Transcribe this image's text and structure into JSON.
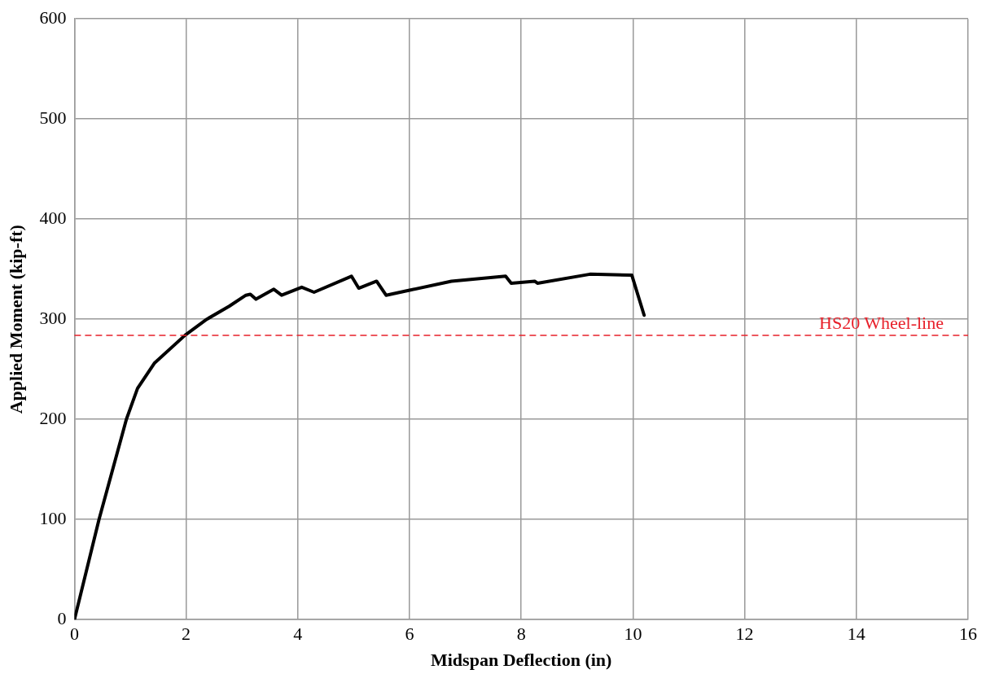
{
  "chart_data": {
    "type": "line",
    "xlabel": "Midspan Deflection (in)",
    "ylabel": "Applied Moment (kip-ft)",
    "series": [
      {
        "color": "#000000",
        "x": [
          0,
          0.44,
          0.93,
          1.13,
          1.43,
          1.98,
          2.37,
          2.77,
          3.07,
          3.15,
          3.25,
          3.57,
          3.71,
          4.07,
          4.29,
          4.96,
          5.09,
          5.41,
          5.58,
          6.0,
          6.75,
          7.72,
          7.82,
          8.24,
          8.29,
          9.23,
          9.98,
          10.2
        ],
        "values": [
          0,
          100,
          200,
          231,
          256,
          284,
          300,
          313,
          324,
          325,
          320,
          330,
          324,
          332,
          327,
          343,
          331,
          338,
          324,
          329,
          338,
          343,
          336,
          338,
          336,
          345,
          344,
          304
        ]
      }
    ],
    "xlim": [
      0,
      16
    ],
    "xticks": [
      0,
      2,
      4,
      6,
      8,
      10,
      12,
      14,
      16
    ],
    "ylim": [
      0,
      600
    ],
    "yticks": [
      0,
      100,
      200,
      300,
      400,
      500,
      600
    ],
    "grid": true,
    "legend": false,
    "marker": "none",
    "line_style": "solid",
    "ref_lines": [
      {
        "axis": "y",
        "value": 284,
        "label": "HS20 Wheel-line",
        "color": "#e8202a",
        "line_style": "dashed"
      }
    ]
  }
}
